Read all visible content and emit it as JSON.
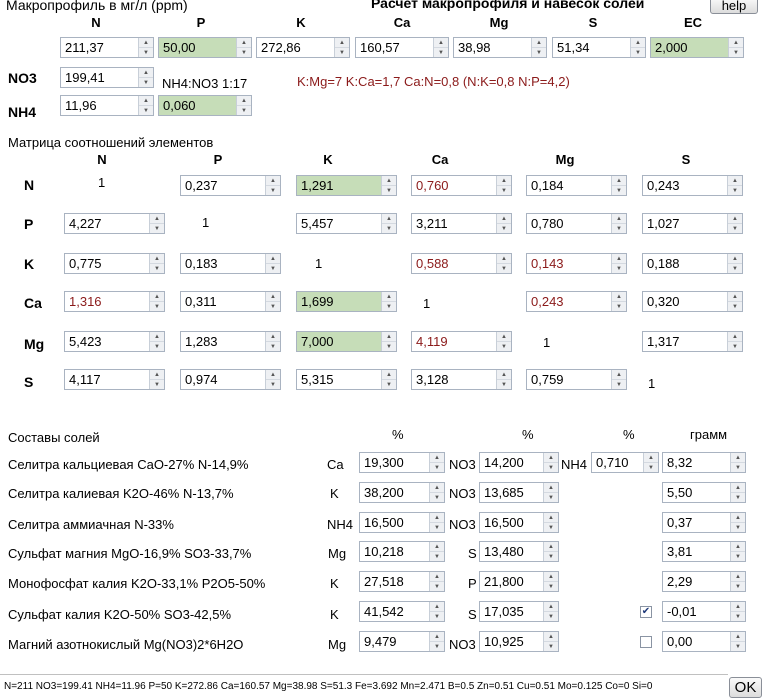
{
  "header": {
    "macro_title": "Макропрофиль в мг/л (ppm)",
    "app_title": "Расчет макропрофиля и навесок солей",
    "help_label": "help"
  },
  "macro": {
    "columns": [
      "N",
      "P",
      "K",
      "Ca",
      "Mg",
      "S",
      "EC"
    ],
    "values": [
      "211,37",
      "50,00",
      "272,86",
      "160,57",
      "38,98",
      "51,34",
      "2,000"
    ],
    "no3_label": "NO3",
    "no3_value": "199,41",
    "nh4_label": "NH4",
    "nh4_value": "11,96",
    "nh4_ratio_value": "0,060",
    "ratio_text": "NH4:NO3 1:17",
    "ratios_summary": "K:Mg=7 K:Ca=1,7 Ca:N=0,8 (N:K=0,8 N:P=4,2)"
  },
  "matrix": {
    "title": "Матрица соотношений элементов",
    "columns": [
      "N",
      "P",
      "K",
      "Ca",
      "Mg",
      "S"
    ],
    "rows": [
      {
        "label": "N",
        "cells": [
          "1",
          "0,237",
          "1,291",
          "0,760",
          "0,184",
          "0,243"
        ]
      },
      {
        "label": "P",
        "cells": [
          "4,227",
          "1",
          "5,457",
          "3,211",
          "0,780",
          "1,027"
        ]
      },
      {
        "label": "K",
        "cells": [
          "0,775",
          "0,183",
          "1",
          "0,588",
          "0,143",
          "0,188"
        ]
      },
      {
        "label": "Ca",
        "cells": [
          "1,316",
          "0,311",
          "1,699",
          "1",
          "0,243",
          "0,320"
        ]
      },
      {
        "label": "Mg",
        "cells": [
          "5,423",
          "1,283",
          "7,000",
          "4,119",
          "1",
          "1,317"
        ]
      },
      {
        "label": "S",
        "cells": [
          "4,117",
          "0,974",
          "5,315",
          "3,128",
          "0,759",
          "1"
        ]
      }
    ]
  },
  "salts": {
    "title": "Составы солей",
    "col_pct1": "%",
    "col_pct2": "%",
    "col_pct3": "%",
    "col_grams": "грамм",
    "rows": [
      {
        "name": "Селитра кальциевая CaO-27% N-14,9%",
        "el1": "Ca",
        "pct1": "19,300",
        "el2": "NO3",
        "pct2": "14,200",
        "el3": "NH4",
        "pct3": "0,710",
        "grams": "8,32"
      },
      {
        "name": "Селитра калиевая K2O-46% N-13,7%",
        "el1": "K",
        "pct1": "38,200",
        "el2": "NO3",
        "pct2": "13,685",
        "grams": "5,50"
      },
      {
        "name": "Селитра аммиачная N-33%",
        "el1": "NH4",
        "pct1": "16,500",
        "el2": "NO3",
        "pct2": "16,500",
        "grams": "0,37"
      },
      {
        "name": "Сульфат магния MgO-16,9% SO3-33,7%",
        "el1": "Mg",
        "pct1": "10,218",
        "el2": "S",
        "pct2": "13,480",
        "grams": "3,81"
      },
      {
        "name": "Монофосфат калия K2O-33,1% P2O5-50%",
        "el1": "K",
        "pct1": "27,518",
        "el2": "P",
        "pct2": "21,800",
        "grams": "2,29"
      },
      {
        "name": "Сульфат калия K2O-50% SO3-42,5%",
        "el1": "K",
        "pct1": "41,542",
        "el2": "S",
        "pct2": "17,035",
        "checked": true,
        "grams": "-0,01"
      },
      {
        "name": "Магний азотнокислый Mg(NO3)2*6H2O",
        "el1": "Mg",
        "pct1": "9,479",
        "el2": "NO3",
        "pct2": "10,925",
        "checked": false,
        "grams": "0,00"
      }
    ]
  },
  "status_bar": {
    "text": "N=211 NO3=199.41 NH4=11.96 P=50 K=272.86 Ca=160.57 Mg=38.98 S=51.3 Fe=3.692 Mn=2.471 B=0.5 Zn=0.51 Cu=0.51 Mo=0.125 Co=0 Si=0",
    "ok_label": "OK"
  }
}
